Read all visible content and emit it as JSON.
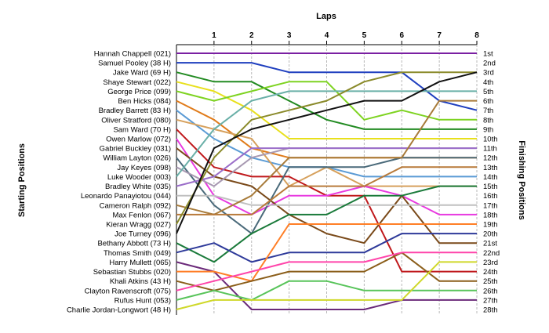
{
  "chart_data": {
    "type": "line",
    "title": "",
    "xlabel": "Laps",
    "ylabel_left": "Starting Positions",
    "ylabel_right": "Finishing Positions",
    "x_ticks": [
      1,
      2,
      3,
      4,
      5,
      6,
      7,
      8
    ],
    "xlim": [
      0,
      8
    ],
    "ylim": [
      1,
      28
    ],
    "y_inverted": true,
    "grid": "vertical",
    "finishing_labels": [
      "1st",
      "2nd",
      "3rd",
      "4th",
      "5th",
      "6th",
      "7th",
      "8th",
      "9th",
      "10th",
      "11th",
      "12th",
      "13th",
      "14th",
      "15th",
      "16th",
      "17th",
      "18th",
      "19th",
      "20th",
      "21st",
      "22nd",
      "23rd",
      "24th",
      "25th",
      "26th",
      "27th",
      "28th"
    ],
    "series": [
      {
        "name": "Hannah Chappell (021)",
        "color": "#7a1fa2",
        "values": [
          1,
          1,
          1,
          1,
          1,
          1,
          1,
          1,
          1
        ]
      },
      {
        "name": "Samuel Pooley (38 H)",
        "color": "#1f3fbf",
        "values": [
          2,
          2,
          2,
          3,
          3,
          3,
          3,
          6,
          7
        ]
      },
      {
        "name": "Jake Ward (69 H)",
        "color": "#228b22",
        "values": [
          3,
          4,
          4,
          6,
          8,
          9,
          9,
          9,
          9
        ]
      },
      {
        "name": "Shaye Stewart (022)",
        "color": "#e8e01c",
        "values": [
          4,
          5,
          7,
          10,
          10,
          10,
          10,
          10,
          10
        ]
      },
      {
        "name": "George Price (099)",
        "color": "#7ed321",
        "values": [
          5,
          6,
          5,
          4,
          4,
          8,
          7,
          8,
          8
        ]
      },
      {
        "name": "Ben Hicks (084)",
        "color": "#e07b1a",
        "values": [
          6,
          8,
          11,
          12,
          12,
          12,
          12,
          12,
          12
        ]
      },
      {
        "name": "Bradley Barrett (83 H)",
        "color": "#5b9bd5",
        "values": [
          7,
          10,
          12,
          13,
          13,
          14,
          14,
          14,
          14
        ]
      },
      {
        "name": "Oliver Stratford (080)",
        "color": "#d6a05c",
        "values": [
          8,
          9,
          10,
          15,
          13,
          15,
          15,
          15,
          15
        ]
      },
      {
        "name": "Sam Ward (70 H)",
        "color": "#c0191c",
        "values": [
          9,
          13,
          14,
          14,
          16,
          16,
          24,
          24,
          24
        ]
      },
      {
        "name": "Owen Marlow (072)",
        "color": "#e83ae0",
        "values": [
          10,
          16,
          18,
          16,
          16,
          15,
          16,
          18,
          18
        ]
      },
      {
        "name": "Gabriel Buckley (031)",
        "color": "#7a4a1a",
        "values": [
          11,
          14,
          15,
          18,
          20,
          21,
          16,
          21,
          21
        ]
      },
      {
        "name": "William Layton (026)",
        "color": "#4a6a7a",
        "values": [
          12,
          17,
          20,
          13,
          13,
          13,
          12,
          12,
          12
        ]
      },
      {
        "name": "Jay Keyes (098)",
        "color": "#a899b2",
        "values": [
          13,
          15,
          12,
          11,
          11,
          11,
          11,
          11,
          11
        ]
      },
      {
        "name": "Luke Wooder (003)",
        "color": "#6ab0a8",
        "values": [
          14,
          9,
          6,
          5,
          5,
          5,
          5,
          5,
          5
        ]
      },
      {
        "name": "Bradley White (035)",
        "color": "#9b6ec9",
        "values": [
          15,
          14,
          11,
          11,
          11,
          11,
          11,
          11,
          11
        ]
      },
      {
        "name": "Leonardo Panayiotou (044)",
        "color": "#c0c0c0",
        "values": [
          16,
          16,
          17,
          17,
          17,
          17,
          17,
          17,
          17
        ]
      },
      {
        "name": "Cameron Ralph (092)",
        "color": "#a87b3a",
        "values": [
          17,
          18,
          16,
          12,
          12,
          12,
          12,
          6,
          6
        ]
      },
      {
        "name": "Max Fenlon (067)",
        "color": "#b87a3a",
        "values": [
          18,
          18,
          18,
          15,
          15,
          15,
          13,
          13,
          13
        ]
      },
      {
        "name": "Kieran Wragg (027)",
        "color": "#8a8a2a",
        "values": [
          19,
          12,
          8,
          7,
          6,
          4,
          3,
          3,
          3
        ]
      },
      {
        "name": "Joe Turney (096)",
        "color": "#111111",
        "values": [
          20,
          11,
          9,
          8,
          7,
          6,
          6,
          4,
          3
        ]
      },
      {
        "name": "Bethany Abbott (73 H)",
        "color": "#1a7a3a",
        "values": [
          21,
          23,
          20,
          18,
          18,
          16,
          16,
          15,
          15
        ]
      },
      {
        "name": "Thomas Smith (049)",
        "color": "#2e3a9a",
        "values": [
          22,
          21,
          23,
          22,
          22,
          22,
          20,
          20,
          20
        ]
      },
      {
        "name": "Harry Mullett (065)",
        "color": "#6b2a7a",
        "values": [
          23,
          24,
          28,
          28,
          28,
          28,
          27,
          27,
          27
        ]
      },
      {
        "name": "Sebastian Stubbs (020)",
        "color": "#ff7f27",
        "values": [
          24,
          24,
          25,
          19,
          19,
          19,
          19,
          19,
          19
        ]
      },
      {
        "name": "Khali Atkins (43 H)",
        "color": "#8b5e1a",
        "values": [
          25,
          26,
          25,
          24,
          24,
          24,
          22,
          25,
          25
        ]
      },
      {
        "name": "Clayton Ravenscroft (075)",
        "color": "#ff44aa",
        "values": [
          26,
          25,
          24,
          23,
          23,
          23,
          22,
          22,
          22
        ]
      },
      {
        "name": "Rufus Hunt (053)",
        "color": "#58c45a",
        "values": [
          27,
          26,
          27,
          25,
          25,
          26,
          26,
          26,
          26
        ]
      },
      {
        "name": "Charlie Jordan-Longwort (48 H)",
        "color": "#cfd82a",
        "values": [
          28,
          27,
          27,
          27,
          27,
          27,
          27,
          23,
          23
        ]
      }
    ]
  }
}
